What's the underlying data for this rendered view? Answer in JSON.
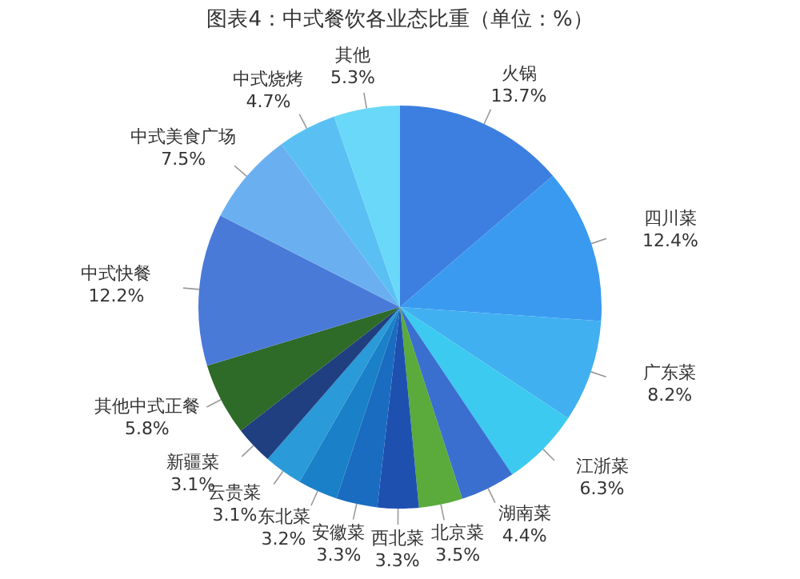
{
  "chart_data": {
    "type": "pie",
    "title": "图表4：中式餐饮各业态比重（单位：%）",
    "categories": [
      "火锅",
      "四川菜",
      "广东菜",
      "江浙菜",
      "湖南菜",
      "北京菜",
      "西北菜",
      "安徽菜",
      "东北菜",
      "云贵菜",
      "新疆菜",
      "其他中式正餐",
      "中式快餐",
      "中式美食广场",
      "中式烧烤",
      "其他"
    ],
    "values": [
      13.7,
      12.4,
      8.2,
      6.3,
      4.4,
      3.5,
      3.3,
      3.3,
      3.2,
      3.1,
      3.1,
      5.8,
      12.2,
      7.5,
      4.7,
      5.3
    ],
    "value_labels": [
      "13.7%",
      "12.4%",
      "8.2%",
      "6.3%",
      "4.4%",
      "3.5%",
      "3.3%",
      "3.3%",
      "3.2%",
      "3.1%",
      "3.1%",
      "5.8%",
      "12.2%",
      "7.5%",
      "4.7%",
      "5.3%"
    ],
    "colors": [
      "#3d7fe0",
      "#3a9af0",
      "#41b0f0",
      "#3ccaf0",
      "#3a6fd0",
      "#5aaa3c",
      "#1e50b0",
      "#1a6cc0",
      "#1a80c8",
      "#2a9ad8",
      "#203f80",
      "#2e6a28",
      "#4a7ad8",
      "#6ab0f0",
      "#5ac0f4",
      "#6ad8f8"
    ],
    "legend": false
  }
}
